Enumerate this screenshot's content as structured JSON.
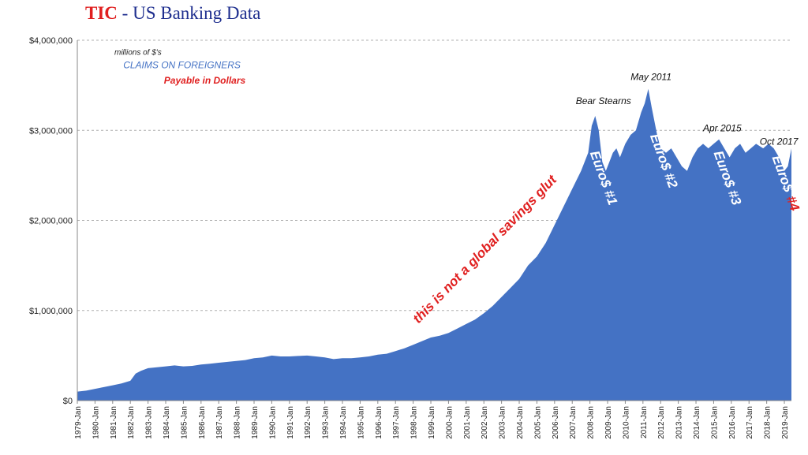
{
  "title": {
    "part1": "TIC",
    "separator": " - ",
    "part2": "US Banking Data"
  },
  "colors": {
    "fill": "#4472c4",
    "title_red": "#e02020",
    "title_blue": "#1f2f8f",
    "grid": "#b0b0b0",
    "label_red": "#e02020",
    "label_blue": "#4472c4"
  },
  "chart_data": {
    "type": "area",
    "title": "TIC - US Banking Data",
    "units_note": "millions of $'s",
    "series": [
      {
        "name": "CLAIMS ON FOREIGNERS Payable in Dollars"
      }
    ],
    "ylim": [
      0,
      4000000
    ],
    "yticks": [
      0,
      1000000,
      2000000,
      3000000,
      4000000
    ],
    "ytick_labels": [
      "$0",
      "$1,000,000",
      "$2,000,000",
      "$3,000,000",
      "$4,000,000"
    ],
    "xlim": [
      1979.0,
      2019.4
    ],
    "xtick_labels": [
      "1979-Jan",
      "1980-Jan",
      "1981-Jan",
      "1982-Jan",
      "1983-Jan",
      "1984-Jan",
      "1985-Jan",
      "1986-Jan",
      "1987-Jan",
      "1988-Jan",
      "1989-Jan",
      "1990-Jan",
      "1991-Jan",
      "1992-Jan",
      "1993-Jan",
      "1994-Jan",
      "1995-Jan",
      "1996-Jan",
      "1997-Jan",
      "1998-Jan",
      "1999-Jan",
      "2000-Jan",
      "2001-Jan",
      "2002-Jan",
      "2003-Jan",
      "2004-Jan",
      "2005-Jan",
      "2006-Jan",
      "2007-Jan",
      "2008-Jan",
      "2009-Jan",
      "2010-Jan",
      "2011-Jan",
      "2012-Jan",
      "2013-Jan",
      "2014-Jan",
      "2015-Jan",
      "2016-Jan",
      "2017-Jan",
      "2018-Jan",
      "2019-Jan"
    ],
    "x": [
      1979.0,
      1979.5,
      1980.0,
      1980.5,
      1981.0,
      1981.5,
      1982.0,
      1982.3,
      1982.6,
      1983.0,
      1983.5,
      1984.0,
      1984.5,
      1985.0,
      1985.5,
      1986.0,
      1986.5,
      1987.0,
      1987.5,
      1988.0,
      1988.5,
      1989.0,
      1989.5,
      1990.0,
      1990.5,
      1991.0,
      1991.5,
      1992.0,
      1992.5,
      1993.0,
      1993.5,
      1994.0,
      1994.5,
      1995.0,
      1995.5,
      1996.0,
      1996.5,
      1997.0,
      1997.5,
      1998.0,
      1998.5,
      1999.0,
      1999.5,
      2000.0,
      2000.5,
      2001.0,
      2001.5,
      2002.0,
      2002.5,
      2003.0,
      2003.5,
      2004.0,
      2004.5,
      2005.0,
      2005.5,
      2006.0,
      2006.5,
      2007.0,
      2007.5,
      2007.9,
      2008.1,
      2008.3,
      2008.5,
      2008.7,
      2008.9,
      2009.1,
      2009.3,
      2009.5,
      2009.7,
      2010.0,
      2010.3,
      2010.6,
      2010.9,
      2011.1,
      2011.3,
      2011.5,
      2011.8,
      2012.0,
      2012.3,
      2012.6,
      2012.9,
      2013.2,
      2013.5,
      2013.8,
      2014.1,
      2014.4,
      2014.7,
      2015.0,
      2015.3,
      2015.6,
      2015.9,
      2016.2,
      2016.5,
      2016.8,
      2017.1,
      2017.4,
      2017.8,
      2018.1,
      2018.4,
      2018.7,
      2019.0,
      2019.2,
      2019.4
    ],
    "values": [
      100000,
      110000,
      130000,
      150000,
      170000,
      190000,
      220000,
      300000,
      330000,
      360000,
      370000,
      380000,
      390000,
      380000,
      385000,
      400000,
      410000,
      420000,
      430000,
      440000,
      450000,
      470000,
      480000,
      500000,
      490000,
      490000,
      495000,
      500000,
      490000,
      480000,
      460000,
      470000,
      470000,
      480000,
      490000,
      510000,
      520000,
      550000,
      580000,
      620000,
      660000,
      700000,
      720000,
      750000,
      800000,
      850000,
      900000,
      970000,
      1050000,
      1150000,
      1250000,
      1350000,
      1500000,
      1600000,
      1750000,
      1950000,
      2150000,
      2350000,
      2550000,
      2750000,
      3050000,
      3160000,
      3000000,
      2650000,
      2550000,
      2650000,
      2750000,
      2800000,
      2700000,
      2850000,
      2950000,
      3000000,
      3200000,
      3300000,
      3460000,
      3250000,
      2950000,
      2800000,
      2750000,
      2800000,
      2700000,
      2600000,
      2550000,
      2700000,
      2800000,
      2850000,
      2800000,
      2850000,
      2900000,
      2800000,
      2700000,
      2800000,
      2850000,
      2750000,
      2800000,
      2850000,
      2800000,
      2850000,
      2800000,
      2700000,
      2550000,
      2600000,
      2800000
    ],
    "annotations": [
      {
        "text": "millions of $'s",
        "x": 1981.1,
        "y": 3840000,
        "color": "#222222",
        "size": 10,
        "rotate": 0,
        "bold": false
      },
      {
        "text": "CLAIMS  ON FOREIGNERS",
        "x": 1981.6,
        "y": 3690000,
        "color": "#4472c4",
        "size": 12,
        "rotate": 0,
        "bold": false
      },
      {
        "text": "Payable  in Dollars",
        "x": 1983.9,
        "y": 3520000,
        "color": "#e02020",
        "size": 12,
        "rotate": 0,
        "bold": true
      },
      {
        "text": "Bear Stearns",
        "x": 2007.2,
        "y": 3290000,
        "color": "#111111",
        "size": 12,
        "rotate": 0,
        "bold": false
      },
      {
        "text": "May 2011",
        "x": 2010.3,
        "y": 3560000,
        "color": "#111111",
        "size": 12,
        "rotate": 0,
        "bold": false
      },
      {
        "text": "Apr 2015",
        "x": 2014.4,
        "y": 2990000,
        "color": "#111111",
        "size": 12,
        "rotate": 0,
        "bold": false
      },
      {
        "text": "Oct 2017",
        "x": 2017.6,
        "y": 2840000,
        "color": "#111111",
        "size": 12,
        "rotate": 0,
        "bold": false
      },
      {
        "text": "this is not a global savings glut",
        "x": 1998.3,
        "y": 850000,
        "color": "#e02020",
        "size": 17,
        "rotate": -46,
        "bold": true
      },
      {
        "text": "Euro$ #1",
        "x": 2008.0,
        "y": 2750000,
        "color": "#ffffff",
        "size": 17,
        "rotate": 70,
        "bold": true
      },
      {
        "text": "Euro$ #2",
        "x": 2011.4,
        "y": 2940000,
        "color": "#ffffff",
        "size": 17,
        "rotate": 70,
        "bold": true
      },
      {
        "text": "Euro$ #3",
        "x": 2015.0,
        "y": 2750000,
        "color": "#ffffff",
        "size": 17,
        "rotate": 70,
        "bold": true
      },
      {
        "text": "Euro$",
        "x": 2018.3,
        "y": 2700000,
        "color": "#ffffff",
        "size": 17,
        "rotate": 70,
        "bold": true
      },
      {
        "text": "#4",
        "x": 2019.1,
        "y": 2250000,
        "color": "#e02020",
        "size": 17,
        "rotate": 70,
        "bold": true
      }
    ]
  }
}
